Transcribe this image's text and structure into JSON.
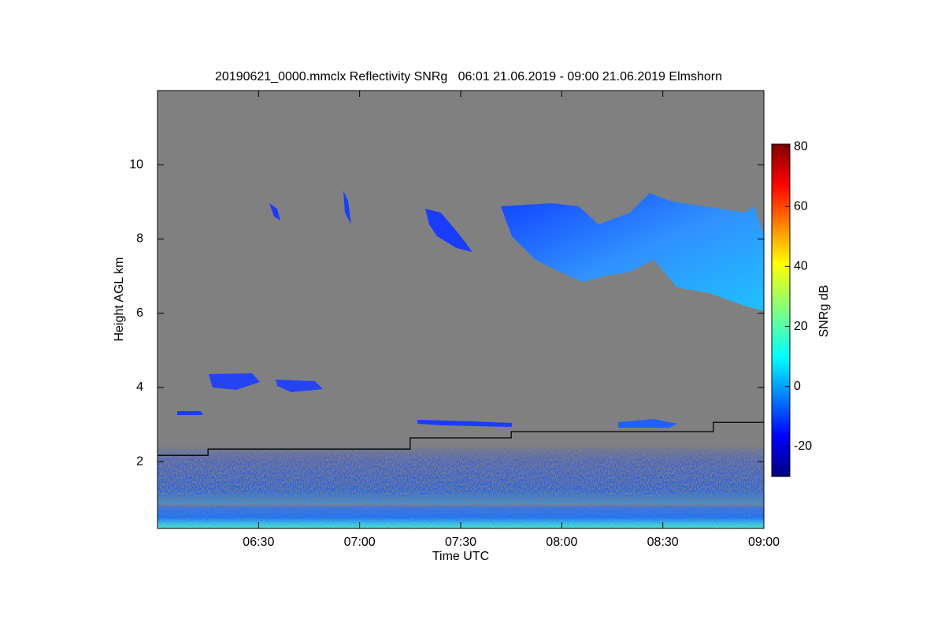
{
  "chart_data": {
    "type": "line",
    "title": "20190621_0000.mmclx Reflectivity SNRg   06:01 21.06.2019 - 09:00 21.06.2019 Elmshorn",
    "x_label": "Time UTC",
    "y_label": "Height AGL km",
    "xlim": [
      360,
      540
    ],
    "xticks": [
      {
        "value": 390,
        "label": "06:30"
      },
      {
        "value": 420,
        "label": "07:00"
      },
      {
        "value": 450,
        "label": "07:30"
      },
      {
        "value": 480,
        "label": "08:00"
      },
      {
        "value": 510,
        "label": "08:30"
      },
      {
        "value": 540,
        "label": "09:00"
      }
    ],
    "ylim": [
      0.2,
      12
    ],
    "yticks": [
      2,
      4,
      6,
      8,
      10
    ],
    "background": "#808080",
    "series": [
      {
        "color": "#000000",
        "x": [
          360,
          375,
          375,
          435,
          435,
          465,
          465,
          525,
          525,
          540
        ],
        "values": [
          2.17,
          2.17,
          2.34,
          2.34,
          2.64,
          2.64,
          2.81,
          2.81,
          3.06,
          3.06
        ]
      }
    ],
    "colorbar": {
      "label": "SNRg dB",
      "lim": [
        -30,
        80.8
      ],
      "ticks": [
        -20,
        0,
        20,
        40,
        60,
        80
      ]
    }
  }
}
